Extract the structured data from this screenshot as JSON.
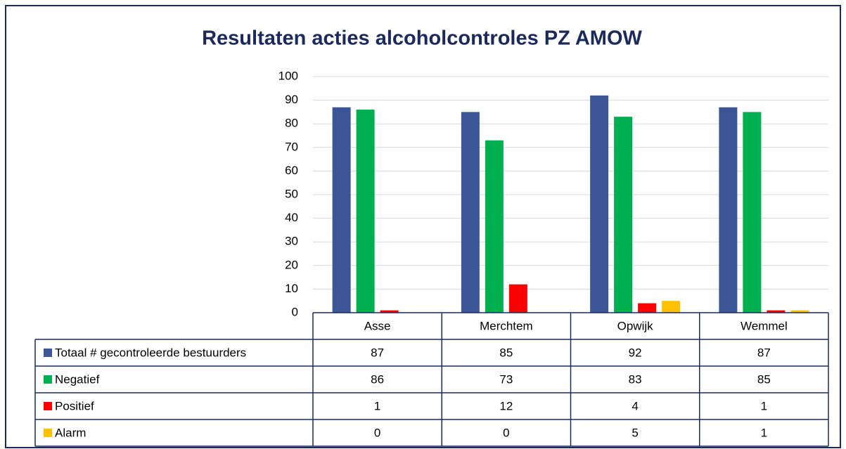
{
  "chart_data": {
    "type": "bar",
    "title": "Resultaten acties alcoholcontroles PZ AMOW",
    "categories": [
      "Asse",
      "Merchtem",
      "Opwijk",
      "Wemmel"
    ],
    "series": [
      {
        "name": "Totaal # gecontroleerde bestuurders",
        "color": "#3c5597",
        "values": [
          87,
          85,
          92,
          87
        ]
      },
      {
        "name": "Negatief",
        "color": "#00b050",
        "values": [
          86,
          73,
          83,
          85
        ]
      },
      {
        "name": "Positief",
        "color": "#ff0000",
        "values": [
          1,
          12,
          4,
          1
        ]
      },
      {
        "name": "Alarm",
        "color": "#ffc000",
        "values": [
          0,
          0,
          5,
          1
        ]
      }
    ],
    "ylim": [
      0,
      100
    ],
    "yticks": [
      0,
      10,
      20,
      30,
      40,
      50,
      60,
      70,
      80,
      90,
      100
    ],
    "grid": true
  }
}
